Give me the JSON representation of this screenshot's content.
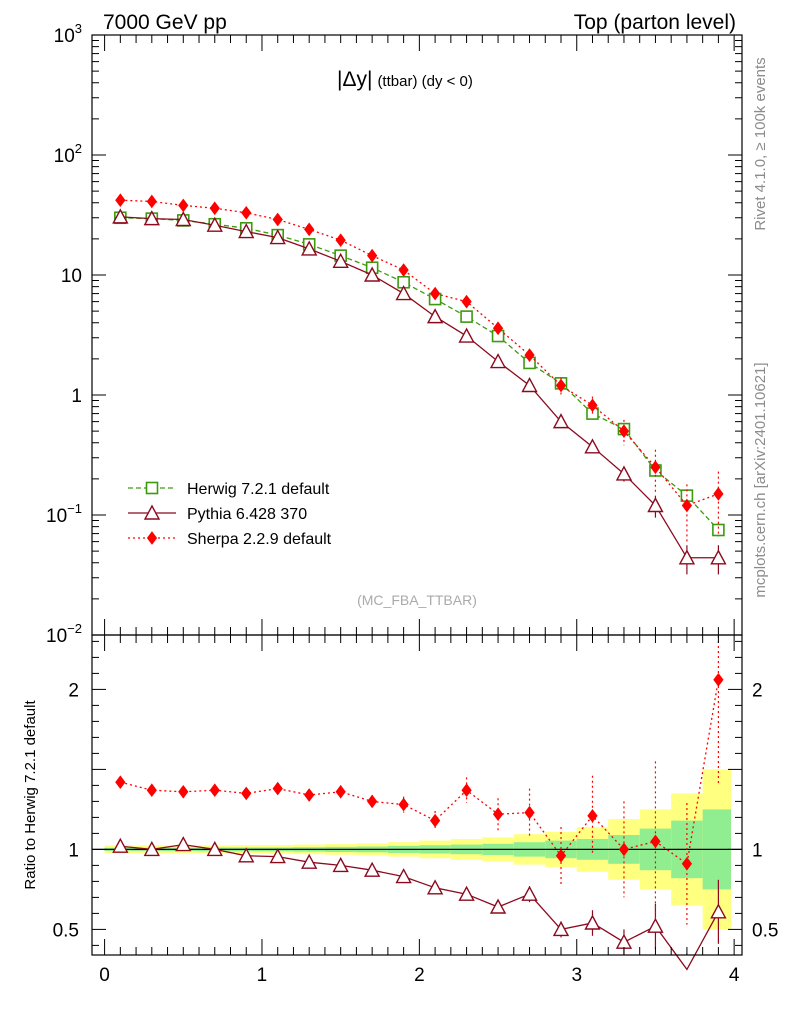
{
  "header": {
    "left": "7000 GeV pp",
    "right": "Top (parton level)"
  },
  "side_text": {
    "rivet": "Rivet 4.1.0, ≥ 100k events",
    "site": "mcplots.cern.ch [arXiv:2401.10621]"
  },
  "colors": {
    "herwig": "#3c9a10",
    "pythia": "#8b0a1e",
    "sherpa": "#ff0000",
    "band_inner": "#90ee90",
    "band_outer": "#ffff80"
  },
  "chart_data": [
    {
      "type": "line",
      "panel": "main",
      "title": "|Δy| (ttbar) (dy < 0)",
      "title_parts": {
        "main": "|Δy|",
        "sub": "(ttbar) (dy < 0)"
      },
      "watermark": "(MC_FBA_TTBAR)",
      "yscale": "log",
      "ylim": [
        0.01,
        1000
      ],
      "xlim": [
        -0.08,
        4.05
      ],
      "y_tick_labels": [
        {
          "v": 1000,
          "base": "10",
          "exp": "3"
        },
        {
          "v": 100,
          "base": "10",
          "exp": "2"
        },
        {
          "v": 10,
          "base": "10",
          "exp": ""
        },
        {
          "v": 1,
          "base": "1",
          "exp": ""
        },
        {
          "v": 0.1,
          "base": "10",
          "exp": "−1"
        },
        {
          "v": 0.01,
          "base": "10",
          "exp": "−2"
        }
      ],
      "x": [
        0.1,
        0.3,
        0.5,
        0.7,
        0.9,
        1.1,
        1.3,
        1.5,
        1.7,
        1.9,
        2.1,
        2.3,
        2.5,
        2.7,
        2.9,
        3.1,
        3.3,
        3.5,
        3.7,
        3.9
      ],
      "series": [
        {
          "name": "Herwig 7.2.1 default",
          "key": "herwig",
          "marker": "open-square",
          "dash": "5,3",
          "values": [
            30,
            29.5,
            28.5,
            26.5,
            24.5,
            21.5,
            18,
            14.5,
            11.5,
            8.7,
            6.3,
            4.5,
            3.1,
            1.85,
            1.25,
            0.7,
            0.52,
            0.235,
            0.145,
            0.075
          ],
          "errors": [
            0.3,
            0.3,
            0.3,
            0.3,
            0.3,
            0.3,
            0.3,
            0.25,
            0.2,
            0.15,
            0.12,
            0.09,
            0.07,
            0.05,
            0.04,
            0.03,
            0.025,
            0.015,
            0.012,
            0.01
          ]
        },
        {
          "name": "Pythia 6.428 370",
          "key": "pythia",
          "marker": "open-triangle",
          "dash": "",
          "values": [
            30.5,
            29.5,
            29,
            26,
            23,
            20.5,
            16.5,
            13,
            10,
            7,
            4.5,
            3.1,
            1.9,
            1.2,
            0.6,
            0.37,
            0.22,
            0.12,
            0.044,
            0.044
          ],
          "errors": [
            0.5,
            0.5,
            0.5,
            0.5,
            0.4,
            0.4,
            0.3,
            0.3,
            0.25,
            0.2,
            0.15,
            0.12,
            0.1,
            0.08,
            0.05,
            0.04,
            0.03,
            0.025,
            0.012,
            0.012
          ]
        },
        {
          "name": "Sherpa 2.2.9 default",
          "key": "sherpa",
          "marker": "filled-diamond",
          "dash": "2,3",
          "values": [
            42,
            41,
            38,
            36,
            33,
            29,
            24,
            19.5,
            14.5,
            11,
            7,
            6,
            3.6,
            2.15,
            1.2,
            0.82,
            0.5,
            0.25,
            0.12,
            0.15
          ],
          "errors": [
            1.2,
            1.2,
            1.1,
            1.1,
            1,
            1,
            0.9,
            0.8,
            0.7,
            0.6,
            0.5,
            0.5,
            0.35,
            0.25,
            0.2,
            0.15,
            0.12,
            0.1,
            0.06,
            0.08
          ]
        }
      ]
    },
    {
      "type": "line",
      "panel": "ratio",
      "ylabel": "Ratio to Herwig 7.2.1 default",
      "ylim": [
        0.34,
        2.34
      ],
      "xlim": [
        -0.08,
        4.05
      ],
      "y_ticks": [
        0.5,
        1,
        2
      ],
      "y_tick_labels": [
        "0.5",
        "1",
        "2"
      ],
      "x_ticks": [
        0,
        1,
        2,
        3,
        4
      ],
      "x_tick_labels": [
        "0",
        "1",
        "2",
        "3",
        "4"
      ],
      "x": [
        0.1,
        0.3,
        0.5,
        0.7,
        0.9,
        1.1,
        1.3,
        1.5,
        1.7,
        1.9,
        2.1,
        2.3,
        2.5,
        2.7,
        2.9,
        3.1,
        3.3,
        3.5,
        3.7,
        3.9
      ],
      "band_edges": [
        0,
        0.2,
        0.4,
        0.6,
        0.8,
        1.0,
        1.2,
        1.4,
        1.6,
        1.8,
        2.0,
        2.2,
        2.4,
        2.6,
        2.8,
        3.0,
        3.2,
        3.4,
        3.6,
        3.8,
        3.98
      ],
      "band_inner": [
        0.01,
        0.01,
        0.01,
        0.012,
        0.012,
        0.012,
        0.014,
        0.016,
        0.018,
        0.022,
        0.026,
        0.03,
        0.035,
        0.045,
        0.055,
        0.065,
        0.09,
        0.13,
        0.18,
        0.25
      ],
      "band_outer": [
        0.025,
        0.025,
        0.025,
        0.025,
        0.027,
        0.027,
        0.03,
        0.033,
        0.037,
        0.045,
        0.055,
        0.065,
        0.075,
        0.095,
        0.11,
        0.14,
        0.19,
        0.25,
        0.35,
        0.5
      ],
      "series": [
        {
          "name": "Pythia 6.428 370",
          "key": "pythia",
          "marker": "open-triangle",
          "dash": "",
          "values": [
            1.02,
            1.0,
            1.03,
            1.0,
            0.96,
            0.955,
            0.92,
            0.9,
            0.87,
            0.83,
            0.76,
            0.72,
            0.64,
            0.72,
            0.5,
            0.54,
            0.42,
            0.52,
            0.25,
            0.61
          ],
          "errors": [
            0.01,
            0.01,
            0.01,
            0.01,
            0.01,
            0.01,
            0.01,
            0.015,
            0.015,
            0.02,
            0.02,
            0.025,
            0.03,
            0.05,
            0.05,
            0.08,
            0.08,
            0.14,
            0.1,
            0.2
          ]
        },
        {
          "name": "Sherpa 2.2.9 default",
          "key": "sherpa",
          "marker": "filled-diamond",
          "dash": "2,3",
          "values": [
            1.42,
            1.37,
            1.36,
            1.37,
            1.35,
            1.38,
            1.34,
            1.36,
            1.3,
            1.28,
            1.18,
            1.37,
            1.22,
            1.23,
            0.96,
            1.21,
            1.0,
            1.05,
            0.91,
            2.06
          ],
          "errors": [
            0.02,
            0.02,
            0.02,
            0.02,
            0.03,
            0.03,
            0.03,
            0.04,
            0.04,
            0.05,
            0.06,
            0.08,
            0.1,
            0.15,
            0.18,
            0.25,
            0.3,
            0.5,
            0.38,
            0.65
          ]
        }
      ]
    }
  ]
}
